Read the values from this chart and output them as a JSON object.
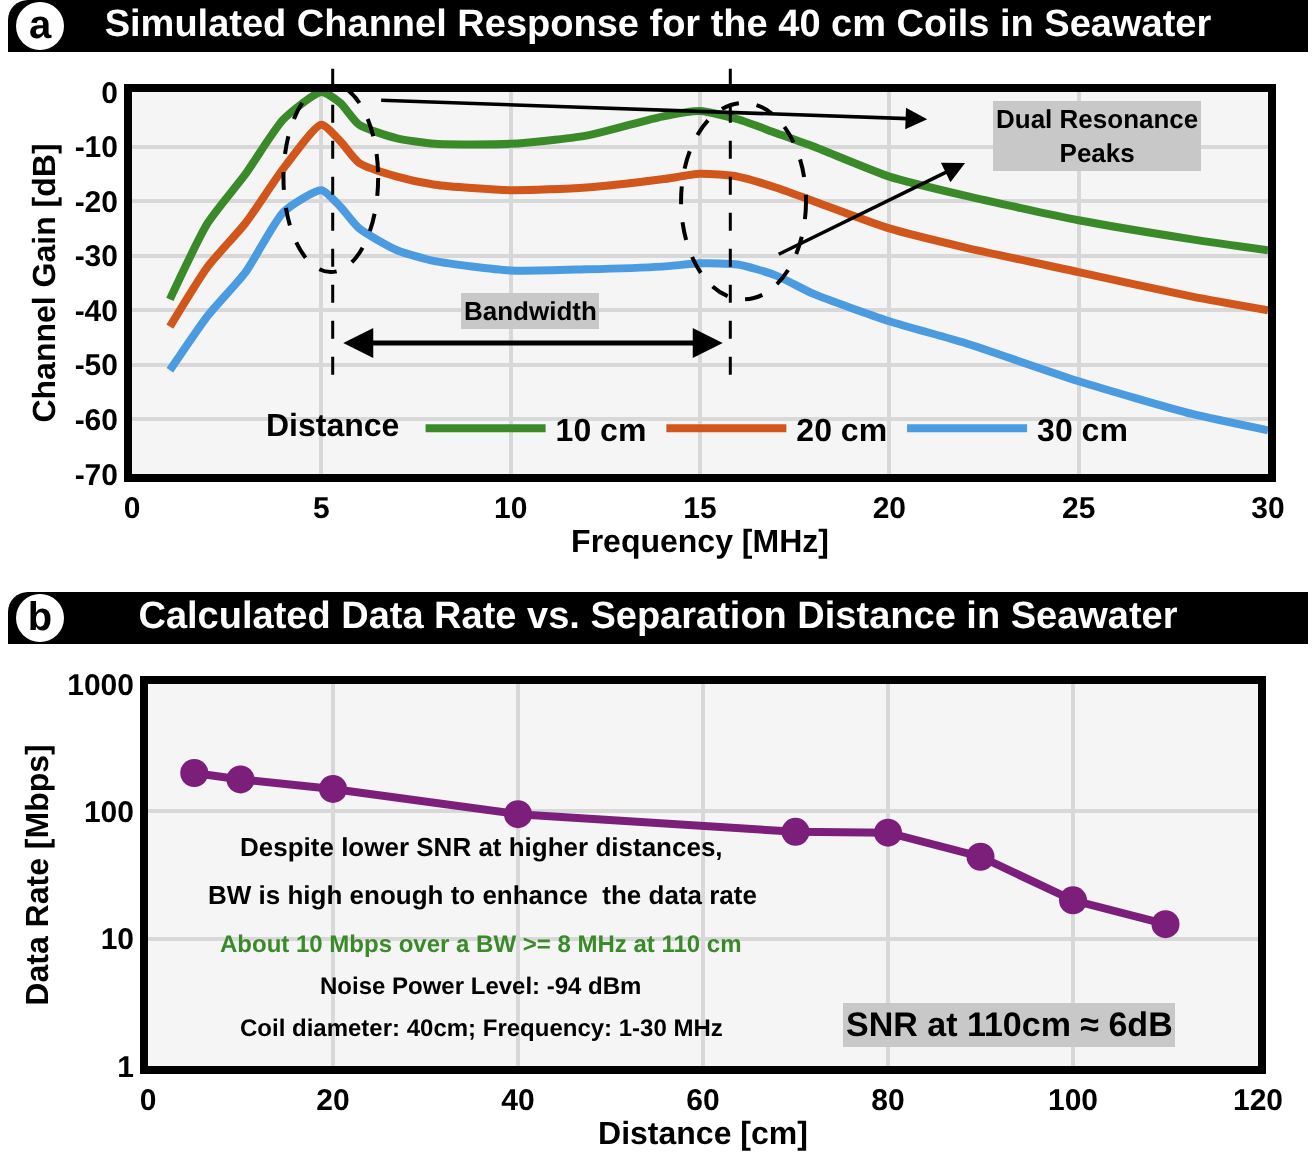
{
  "chart_data": [
    {
      "type": "line",
      "title": "Simulated Channel Response for the 40 cm Coils in Seawater",
      "xlabel": "Frequency [MHz]",
      "ylabel": "Channel Gain [dB]",
      "legend_title": "Distance",
      "legend": "bottom",
      "grid": true,
      "marker": "none",
      "line_style": "solid",
      "x": [
        1,
        2,
        3,
        4,
        5,
        5.5,
        6,
        7,
        8,
        10,
        12,
        14,
        15,
        16,
        17,
        18,
        20,
        22,
        25,
        28,
        30
      ],
      "series": [
        {
          "name": "10 cm",
          "color": "#3a8a2a",
          "values": [
            -38,
            -24,
            -15,
            -5,
            0,
            -2,
            -6,
            -8.5,
            -9.5,
            -9.5,
            -8,
            -4.5,
            -3.5,
            -5,
            -7.5,
            -10,
            -15.5,
            -19,
            -23.5,
            -27,
            -29
          ]
        },
        {
          "name": "20 cm",
          "color": "#d0561c",
          "values": [
            -43,
            -32,
            -24,
            -14,
            -6,
            -9,
            -13,
            -15.5,
            -17,
            -18,
            -17.5,
            -16,
            -15,
            -15.5,
            -17.5,
            -20,
            -25,
            -28.5,
            -33,
            -37.5,
            -40
          ]
        },
        {
          "name": "30 cm",
          "color": "#4b9be0",
          "values": [
            -51,
            -41,
            -33,
            -22,
            -18,
            -21,
            -25,
            -29,
            -31,
            -32.7,
            -32.5,
            -32,
            -31.4,
            -31.6,
            -33.6,
            -37,
            -42,
            -46,
            -53,
            -59,
            -62
          ]
        }
      ],
      "xlim": [
        0,
        30
      ],
      "xticks": [
        0,
        5,
        10,
        15,
        20,
        25,
        30
      ],
      "ylim": [
        -70,
        0
      ],
      "yticks": [
        -70,
        -60,
        -50,
        -40,
        -30,
        -20,
        -10,
        0
      ],
      "ref_lines": [
        {
          "axis": "x",
          "value": 5.3,
          "line_style": "dashed",
          "color": "#000000"
        },
        {
          "axis": "x",
          "value": 15.8,
          "line_style": "dashed",
          "color": "#000000"
        }
      ],
      "annotations": [
        "a",
        "Dual Resonance Peaks",
        "Bandwidth"
      ]
    },
    {
      "type": "line",
      "title": "Calculated Data Rate vs. Separation Distance in Seawater",
      "xlabel": "Distance [cm]",
      "ylabel": "Data Rate [Mbps]",
      "grid": true,
      "log": "y",
      "legend": false,
      "marker": "circle",
      "line_style": "solid",
      "x": [
        5,
        10,
        20,
        40,
        70,
        80,
        90,
        100,
        110
      ],
      "series": [
        {
          "color": "#7b1f7b",
          "values": [
            200,
            178,
            150,
            95,
            69,
            68,
            44,
            20,
            13
          ]
        }
      ],
      "xlim": [
        0,
        120
      ],
      "xticks": [
        0,
        20,
        40,
        60,
        80,
        100,
        120
      ],
      "ylim": [
        1,
        1000
      ],
      "yticks": [
        1,
        10,
        100,
        1000
      ],
      "annotations": [
        "b",
        "Despite lower SNR at higher distances,",
        "BW is high enough to enhance  the data rate",
        "About 10 Mbps over a BW >= 8 MHz at 110 cm",
        "Noise Power Level: -94 dBm",
        "Coil diameter: 40cm; Frequency: 1-30 MHz",
        "SNR at 110cm ≈ 6dB"
      ]
    }
  ]
}
